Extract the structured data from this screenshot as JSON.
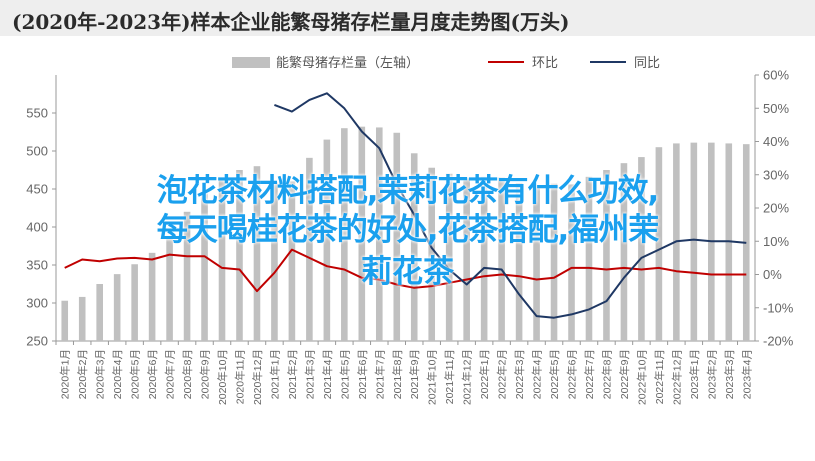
{
  "title": "(2020年-2023年)样本企业能繁母猪存栏量月度走势图(万头)",
  "overlay_lines": [
    "泡花茶材料搭配,茉莉花茶有什么功效,",
    "每天喝桂花茶的好处,花茶搭配,福州茉",
    "莉花茶"
  ],
  "colors": {
    "bar": "#c0c0c0",
    "ring": "#c00000",
    "yoy": "#1f3864",
    "overlay": "#1aa0ee"
  },
  "chart_data": {
    "type": "bar",
    "title": "(2020年-2023年)样本企业能繁母猪存栏量月度走势图(万头)",
    "categories": [
      "2020年1月",
      "2020年2月",
      "2020年3月",
      "2020年4月",
      "2020年5月",
      "2020年6月",
      "2020年7月",
      "2020年8月",
      "2020年9月",
      "2020年10月",
      "2020年11月",
      "2020年12月",
      "2021年1月",
      "2021年2月",
      "2021年3月",
      "2021年4月",
      "2021年5月",
      "2021年6月",
      "2021年7月",
      "2021年8月",
      "2021年9月",
      "2021年10月",
      "2021年11月",
      "2021年12月",
      "2022年1月",
      "2022年2月",
      "2022年3月",
      "2022年4月",
      "2022年5月",
      "2022年6月",
      "2022年7月",
      "2022年8月",
      "2022年9月",
      "2022年10月",
      "2022年11月",
      "2022年12月",
      "2023年1月",
      "2023年2月",
      "2023年3月",
      "2023年4月"
    ],
    "series": [
      {
        "name": "能繁母猪存栏量（左轴）",
        "axis": "left",
        "type": "bar",
        "values": [
          303,
          308,
          325,
          338,
          351,
          366,
          388,
          420,
          444,
          463,
          475,
          480,
          459,
          460,
          491,
          515,
          530,
          532,
          531,
          524,
          497,
          478,
          470,
          464,
          466,
          465,
          458,
          455,
          457,
          456,
          466,
          475,
          484,
          492,
          505,
          510,
          511,
          511,
          510,
          509
        ]
      },
      {
        "name": "环比",
        "axis": "right",
        "type": "line",
        "values": [
          2.0,
          4.5,
          4.0,
          4.8,
          5.0,
          4.5,
          6.0,
          5.5,
          5.5,
          2.0,
          1.5,
          -5.0,
          0.5,
          7.5,
          5.0,
          2.5,
          1.5,
          -1.0,
          -1.5,
          -3.0,
          -4.0,
          -3.5,
          -2.5,
          -1.5,
          -0.5,
          0.0,
          -0.5,
          -1.5,
          -1.0,
          2.0,
          2.0,
          1.5,
          2.0,
          1.5,
          2.0,
          1.0,
          0.5,
          0.0,
          0.0,
          0.0
        ]
      },
      {
        "name": "同比",
        "axis": "right",
        "type": "line",
        "values": [
          null,
          null,
          null,
          null,
          null,
          null,
          null,
          null,
          null,
          null,
          null,
          null,
          51.0,
          49.0,
          52.5,
          54.5,
          50.0,
          43.0,
          38.0,
          27.0,
          18.0,
          8.0,
          1.5,
          -3.0,
          2.0,
          1.5,
          -6.0,
          -12.5,
          -13.0,
          -12.0,
          -10.5,
          -8.0,
          -1.0,
          5.0,
          7.5,
          10.0,
          10.5,
          10.0,
          10.0,
          9.5
        ]
      }
    ],
    "ylim": [
      250,
      600
    ],
    "yticks": [
      250,
      300,
      350,
      400,
      450,
      500,
      550
    ],
    "y2lim": [
      -20,
      60
    ],
    "y2ticks": [
      "-20%",
      "-10%",
      "0%",
      "10%",
      "20%",
      "30%",
      "40%",
      "50%",
      "60%"
    ],
    "y2tick_values": [
      -20,
      -10,
      0,
      10,
      20,
      30,
      40,
      50,
      60
    ],
    "legend_position": "top",
    "grid": false
  }
}
